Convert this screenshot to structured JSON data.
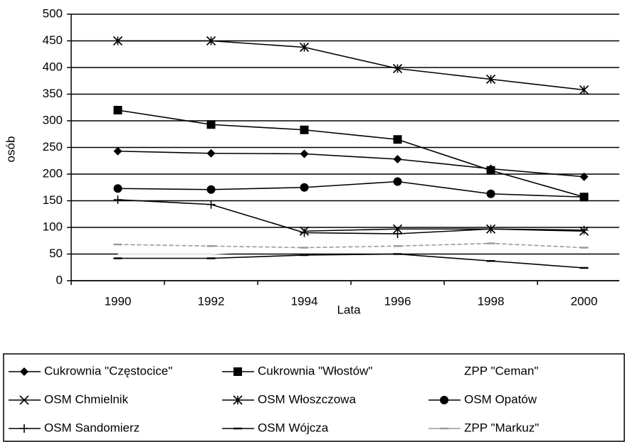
{
  "chart_data": {
    "type": "line",
    "y_label": "osób",
    "x_label": "Lata",
    "categories": [
      "1990",
      "1992",
      "1994",
      "1996",
      "1998",
      "2000"
    ],
    "ylim": [
      0,
      500
    ],
    "yticks": [
      0,
      50,
      100,
      150,
      200,
      250,
      300,
      350,
      400,
      450,
      500
    ],
    "grid": true,
    "series": [
      {
        "name": "Cukrownia \"Częstocice\"",
        "color": "#000000",
        "marker": "diamond",
        "values": [
          243,
          239,
          238,
          228,
          210,
          195
        ]
      },
      {
        "name": "Cukrownia \"Włostów\"",
        "color": "#000000",
        "marker": "square",
        "values": [
          320,
          293,
          283,
          265,
          207,
          157
        ]
      },
      {
        "name": "ZPP \"Ceman\"",
        "color": "#ffffff",
        "marker": "none",
        "values": [
          50,
          50,
          60,
          97,
          95,
          90
        ]
      },
      {
        "name": "OSM Chmielnik",
        "color": "#000000",
        "marker": "x",
        "values": [
          null,
          null,
          93,
          97,
          97,
          93
        ]
      },
      {
        "name": "OSM Włoszczowa",
        "color": "#000000",
        "marker": "asterisk",
        "values": [
          450,
          450,
          438,
          398,
          378,
          358
        ]
      },
      {
        "name": "OSM Opatów",
        "color": "#000000",
        "marker": "circle",
        "values": [
          173,
          171,
          175,
          186,
          163,
          157
        ]
      },
      {
        "name": "OSM Sandomierz",
        "color": "#000000",
        "marker": "plus",
        "values": [
          152,
          143,
          90,
          88,
          97,
          95
        ]
      },
      {
        "name": "OSM Wójcza",
        "color": "#000000",
        "marker": "dash",
        "values": [
          42,
          42,
          48,
          50,
          37,
          24
        ]
      },
      {
        "name": "ZPP \"Markuz\"",
        "color": "#9a9a9a",
        "marker": "dash",
        "values": [
          68,
          65,
          62,
          65,
          70,
          62
        ]
      }
    ]
  }
}
